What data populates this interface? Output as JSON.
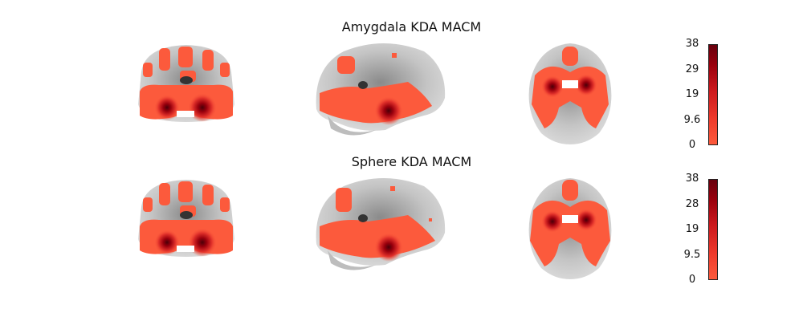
{
  "panels": [
    {
      "title": "Amygdala KDA MACM",
      "colorbar": {
        "ticks": [
          "38",
          "29",
          "19",
          "9.6",
          "0"
        ]
      }
    },
    {
      "title": "Sphere KDA MACM",
      "colorbar": {
        "ticks": [
          "38",
          "28",
          "19",
          "9.5",
          "0"
        ]
      }
    }
  ],
  "colors": {
    "low": "#fc5a3c",
    "high": "#67000d",
    "brain": "#c8c8c8"
  }
}
